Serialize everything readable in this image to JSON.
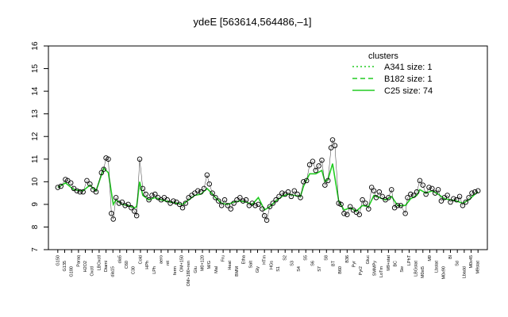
{
  "chart_data": {
    "type": "line",
    "title": "ydeE [563614,564486,–1]",
    "xlabel": "",
    "ylabel": "",
    "ylim": [
      7,
      16
    ],
    "yticks": [
      7,
      8,
      9,
      10,
      11,
      12,
      13,
      14,
      15,
      16
    ],
    "grid": false,
    "legend_position": "top-right",
    "legend": {
      "title": "clusters",
      "entries": [
        {
          "label": "A341 size: 1",
          "style": "dotted",
          "color": "#22cc22"
        },
        {
          "label": "B182 size: 1",
          "style": "dashed",
          "color": "#22cc22"
        },
        {
          "label": "C25 size: 74",
          "style": "solid",
          "color": "#22cc22"
        }
      ]
    },
    "x_tick_labels": [
      "G150",
      "G135",
      "G180",
      "Paraq",
      "H2O2",
      "Oxctl",
      "LBOxctl",
      "Diami",
      "dia15",
      "dia5",
      "C60",
      "C30",
      "Cold",
      "HPh",
      "LPh",
      "aero",
      "nit",
      "ferm",
      "OM+150",
      "OM+180+ren",
      "Glu",
      "M0+120",
      "M/G",
      "Mal",
      "Fru",
      "Heat",
      "BMM",
      "Etha",
      "Salt",
      "Gly",
      "HTm",
      "HGs",
      "S1",
      "S2",
      "S3",
      "S4",
      "S5",
      "S6",
      "S7",
      "S8",
      "BT",
      "B60",
      "B36",
      "Pyr",
      "Pyr2",
      "Gluc",
      "SMMPy",
      "LoTm",
      "M9+stat",
      "BC",
      "Sw",
      "LPhT",
      "LBGstat",
      "M0xt5",
      "M9",
      "Lbstat",
      "M0x90",
      "Bl",
      "Sd",
      "Lbadd",
      "M0x45",
      "M9stat"
    ],
    "series": [
      {
        "style": "points",
        "color": "#000000",
        "points": [
          [
            1,
            9.75
          ],
          [
            1.8,
            9.8
          ],
          [
            3,
            10.1
          ],
          [
            3.6,
            10.05
          ],
          [
            4.4,
            9.95
          ],
          [
            5.2,
            9.7
          ],
          [
            6,
            9.6
          ],
          [
            6.8,
            9.55
          ],
          [
            7.6,
            9.55
          ],
          [
            8.6,
            10.05
          ],
          [
            9.4,
            9.9
          ],
          [
            10.2,
            9.65
          ],
          [
            11,
            9.55
          ],
          [
            12.4,
            10.4
          ],
          [
            13,
            10.55
          ],
          [
            13.6,
            11.05
          ],
          [
            14.2,
            11.0
          ],
          [
            15,
            8.6
          ],
          [
            15.5,
            8.35
          ],
          [
            16.2,
            9.3
          ],
          [
            17,
            9.05
          ],
          [
            17.8,
            9.1
          ],
          [
            18.6,
            8.95
          ],
          [
            19.4,
            9.0
          ],
          [
            20.2,
            8.85
          ],
          [
            21,
            8.7
          ],
          [
            21.6,
            8.5
          ],
          [
            22.4,
            11.0
          ],
          [
            23.2,
            9.7
          ],
          [
            24,
            9.45
          ],
          [
            24.8,
            9.2
          ],
          [
            25.6,
            9.4
          ],
          [
            26.4,
            9.45
          ],
          [
            27.2,
            9.3
          ],
          [
            28,
            9.2
          ],
          [
            28.8,
            9.3
          ],
          [
            29.6,
            9.2
          ],
          [
            30.4,
            9.05
          ],
          [
            31.2,
            9.15
          ],
          [
            32,
            9.1
          ],
          [
            32.8,
            9.0
          ],
          [
            33.6,
            8.85
          ],
          [
            34.4,
            9.05
          ],
          [
            35.2,
            9.3
          ],
          [
            36,
            9.4
          ],
          [
            36.8,
            9.5
          ],
          [
            37.6,
            9.6
          ],
          [
            38.4,
            9.55
          ],
          [
            39.2,
            9.7
          ],
          [
            40,
            10.3
          ],
          [
            40.6,
            9.9
          ],
          [
            41.4,
            9.5
          ],
          [
            42.2,
            9.3
          ],
          [
            43,
            9.15
          ],
          [
            43.8,
            8.95
          ],
          [
            44.6,
            9.2
          ],
          [
            45.4,
            8.95
          ],
          [
            46.2,
            8.8
          ],
          [
            47,
            9.05
          ],
          [
            47.8,
            9.2
          ],
          [
            48.6,
            9.3
          ],
          [
            49.4,
            9.15
          ],
          [
            50.2,
            9.2
          ],
          [
            51,
            8.95
          ],
          [
            51.8,
            9.05
          ],
          [
            52.6,
            8.95
          ],
          [
            53.4,
            9.0
          ],
          [
            54.4,
            8.8
          ],
          [
            55,
            8.5
          ],
          [
            55.6,
            8.3
          ],
          [
            56.4,
            8.9
          ],
          [
            57.2,
            9.05
          ],
          [
            58,
            9.2
          ],
          [
            58.8,
            9.35
          ],
          [
            59.6,
            9.5
          ],
          [
            60.4,
            9.45
          ],
          [
            61.2,
            9.55
          ],
          [
            62,
            9.35
          ],
          [
            62.8,
            9.6
          ],
          [
            63.6,
            9.45
          ],
          [
            64.4,
            9.3
          ],
          [
            65.2,
            10.0
          ],
          [
            66,
            10.05
          ],
          [
            66.8,
            10.75
          ],
          [
            67.6,
            10.9
          ],
          [
            68.4,
            10.5
          ],
          [
            69.2,
            10.7
          ],
          [
            70,
            10.95
          ],
          [
            70.8,
            9.85
          ],
          [
            71.6,
            10.05
          ],
          [
            72.4,
            11.5
          ],
          [
            72.8,
            11.85
          ],
          [
            73.4,
            11.6
          ],
          [
            74.4,
            9.05
          ],
          [
            75,
            9.0
          ],
          [
            75.8,
            8.6
          ],
          [
            76.6,
            8.55
          ],
          [
            77.4,
            8.9
          ],
          [
            78.2,
            8.75
          ],
          [
            79,
            8.65
          ],
          [
            79.8,
            8.55
          ],
          [
            80.6,
            9.2
          ],
          [
            81.4,
            9.05
          ],
          [
            82.2,
            8.8
          ],
          [
            83,
            9.75
          ],
          [
            83.6,
            9.6
          ],
          [
            84.2,
            9.3
          ],
          [
            85,
            9.55
          ],
          [
            85.8,
            9.35
          ],
          [
            86.6,
            9.2
          ],
          [
            87.4,
            9.3
          ],
          [
            88.2,
            9.65
          ],
          [
            89,
            8.85
          ],
          [
            89.8,
            8.95
          ],
          [
            90.6,
            8.95
          ],
          [
            91.8,
            8.6
          ],
          [
            92.4,
            9.3
          ],
          [
            93.2,
            9.45
          ],
          [
            94,
            9.4
          ],
          [
            94.8,
            9.55
          ],
          [
            95.6,
            10.05
          ],
          [
            96.4,
            9.85
          ],
          [
            97.2,
            9.45
          ],
          [
            98,
            9.75
          ],
          [
            98.8,
            9.7
          ],
          [
            99.6,
            9.5
          ],
          [
            100.4,
            9.65
          ],
          [
            101.2,
            9.15
          ],
          [
            102,
            9.3
          ],
          [
            102.8,
            9.4
          ],
          [
            103.6,
            9.1
          ],
          [
            104.4,
            9.25
          ],
          [
            105.2,
            9.2
          ],
          [
            106,
            9.35
          ],
          [
            106.8,
            8.95
          ],
          [
            107.6,
            9.1
          ],
          [
            108.4,
            9.3
          ],
          [
            109.2,
            9.5
          ],
          [
            110,
            9.55
          ],
          [
            110.8,
            9.6
          ]
        ]
      },
      {
        "style": "solid",
        "color": "#22cc22",
        "values": [
          [
            1,
            9.75
          ],
          [
            3,
            9.95
          ],
          [
            5.2,
            9.65
          ],
          [
            7.6,
            9.6
          ],
          [
            9.4,
            9.85
          ],
          [
            11,
            9.6
          ],
          [
            13,
            10.6
          ],
          [
            14.2,
            10.4
          ],
          [
            15.5,
            9.0
          ],
          [
            16.2,
            9.2
          ],
          [
            17.8,
            9.0
          ],
          [
            19.4,
            8.95
          ],
          [
            21,
            8.85
          ],
          [
            21.6,
            8.9
          ],
          [
            22.4,
            10.0
          ],
          [
            23.2,
            9.4
          ],
          [
            24.8,
            9.2
          ],
          [
            26.4,
            9.3
          ],
          [
            28,
            9.2
          ],
          [
            30.4,
            9.1
          ],
          [
            32,
            9.05
          ],
          [
            33.6,
            9.0
          ],
          [
            35.2,
            9.2
          ],
          [
            36.8,
            9.4
          ],
          [
            38.4,
            9.45
          ],
          [
            40,
            9.7
          ],
          [
            40.6,
            9.6
          ],
          [
            42.2,
            9.3
          ],
          [
            43.8,
            9.05
          ],
          [
            45.4,
            9.0
          ],
          [
            47,
            9.1
          ],
          [
            48.6,
            9.15
          ],
          [
            50.2,
            9.1
          ],
          [
            51.8,
            9.0
          ],
          [
            53.4,
            9.3
          ],
          [
            55,
            8.75
          ],
          [
            56.4,
            8.9
          ],
          [
            58,
            9.15
          ],
          [
            59.6,
            9.35
          ],
          [
            61.2,
            9.45
          ],
          [
            62.8,
            9.4
          ],
          [
            64.4,
            9.35
          ],
          [
            65.2,
            9.8
          ],
          [
            66.8,
            10.35
          ],
          [
            68.4,
            10.35
          ],
          [
            70,
            10.5
          ],
          [
            70.8,
            10.0
          ],
          [
            71.6,
            10.1
          ],
          [
            72.8,
            10.8
          ],
          [
            74.4,
            9.15
          ],
          [
            75.8,
            8.75
          ],
          [
            77.4,
            8.85
          ],
          [
            79,
            8.7
          ],
          [
            80.6,
            8.95
          ],
          [
            82.2,
            8.9
          ],
          [
            83.6,
            9.4
          ],
          [
            85,
            9.3
          ],
          [
            86.6,
            9.2
          ],
          [
            88.2,
            9.35
          ],
          [
            89.8,
            8.95
          ],
          [
            91.8,
            8.95
          ],
          [
            93.2,
            9.25
          ],
          [
            94.8,
            9.4
          ],
          [
            95.6,
            9.65
          ],
          [
            97.2,
            9.5
          ],
          [
            98.8,
            9.6
          ],
          [
            100.4,
            9.45
          ],
          [
            102,
            9.25
          ],
          [
            103.6,
            9.2
          ],
          [
            105.2,
            9.15
          ],
          [
            106.8,
            9.05
          ],
          [
            108.4,
            9.2
          ],
          [
            110,
            9.45
          ],
          [
            110.8,
            9.55
          ]
        ]
      }
    ]
  }
}
